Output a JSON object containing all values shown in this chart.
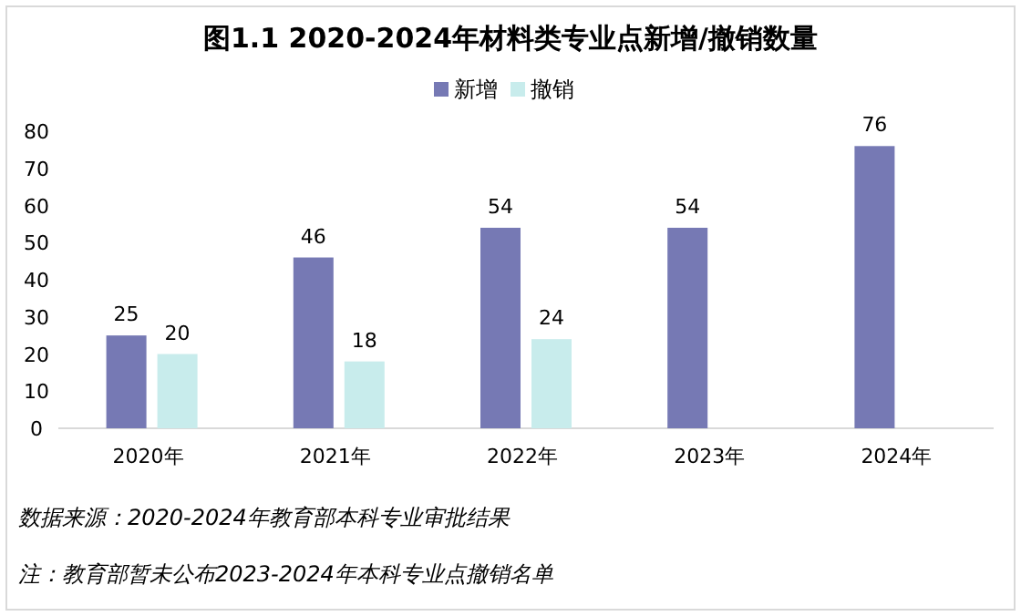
{
  "chart_data": {
    "type": "bar",
    "title": "图1.1 2020-2024年材料类专业点新增/撤销数量",
    "categories": [
      "2020年",
      "2021年",
      "2022年",
      "2023年",
      "2024年"
    ],
    "series": [
      {
        "name": "新增",
        "color": "#7679b4",
        "values": [
          25,
          46,
          54,
          54,
          76
        ]
      },
      {
        "name": "撤销",
        "color": "#c8ecec",
        "values": [
          20,
          18,
          24,
          null,
          null
        ]
      }
    ],
    "ylim": [
      0,
      80
    ],
    "yticks": [
      0,
      10,
      20,
      30,
      40,
      50,
      60,
      70,
      80
    ],
    "grid": false,
    "legend": "top",
    "data_labels": true,
    "annotations": [
      "数据来源：2020-2024年教育部本科专业审批结果",
      "注：教育部暂未公布2023-2024年本科专业点撤销名单"
    ]
  }
}
